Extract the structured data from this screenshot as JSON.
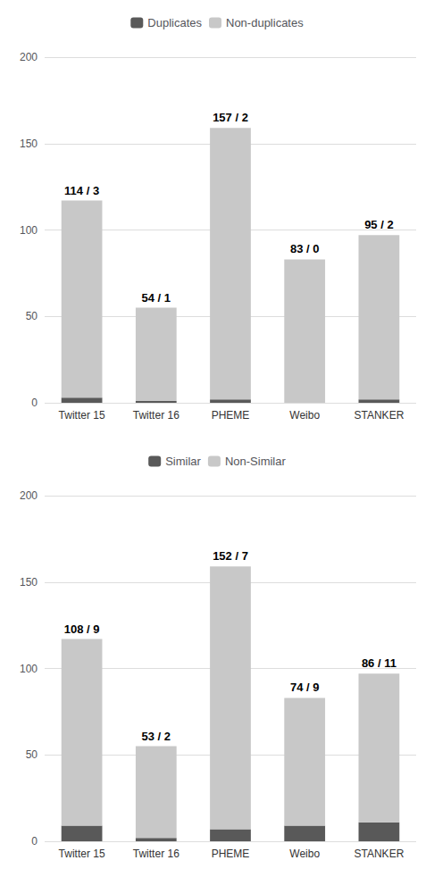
{
  "chart_data": [
    {
      "type": "bar",
      "stacked": true,
      "categories": [
        "Twitter 15",
        "Twitter 16",
        "PHEME",
        "Weibo",
        "STANKER"
      ],
      "series": [
        {
          "name": "Duplicates",
          "color": "#595959",
          "values": [
            3,
            1,
            2,
            0,
            2
          ]
        },
        {
          "name": "Non-duplicates",
          "color": "#c8c8c8",
          "values": [
            114,
            54,
            157,
            83,
            95
          ]
        }
      ],
      "annotations": [
        "114 / 3",
        "54 / 1",
        "157 / 2",
        "83 / 0",
        "95 / 2"
      ],
      "ylim": [
        0,
        200
      ],
      "yticks": [
        0,
        50,
        100,
        150,
        200
      ],
      "grid": true,
      "legend": "top"
    },
    {
      "type": "bar",
      "stacked": true,
      "categories": [
        "Twitter 15",
        "Twitter 16",
        "PHEME",
        "Weibo",
        "STANKER"
      ],
      "series": [
        {
          "name": "Similar",
          "color": "#595959",
          "values": [
            9,
            2,
            7,
            9,
            11
          ]
        },
        {
          "name": "Non-Similar",
          "color": "#c8c8c8",
          "values": [
            108,
            53,
            152,
            74,
            86
          ]
        }
      ],
      "annotations": [
        "108 / 9",
        "53 / 2",
        "152 / 7",
        "74 / 9",
        "86 / 11"
      ],
      "ylim": [
        0,
        200
      ],
      "yticks": [
        0,
        50,
        100,
        150,
        200
      ],
      "grid": true,
      "legend": "top"
    }
  ]
}
